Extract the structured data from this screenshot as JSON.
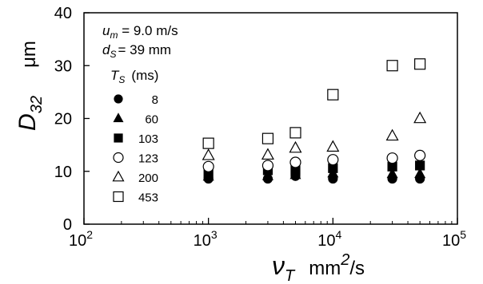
{
  "chart_data": {
    "type": "scatter",
    "x_scale": "log",
    "xlim": [
      100,
      100000
    ],
    "ylim": [
      0,
      40
    ],
    "yticks": [
      0,
      10,
      20,
      30,
      40
    ],
    "xtick_labels": [
      {
        "base": "10",
        "exp": "2"
      },
      {
        "base": "10",
        "exp": "3"
      },
      {
        "base": "10",
        "exp": "4"
      },
      {
        "base": "10",
        "exp": "5"
      }
    ],
    "ytick_labels": [
      "0",
      "10",
      "20",
      "30",
      "40"
    ],
    "ylabel": {
      "main": "D",
      "sub": "32",
      "unit": "μm"
    },
    "xlabel": {
      "main": "ν",
      "sub": "T",
      "unit_pre": "mm",
      "unit_exp": "2",
      "unit_post": "/s"
    },
    "annotations": {
      "um": {
        "var": "u",
        "sub": "m",
        "text": " = 9.0 m/s"
      },
      "ds": {
        "var": "d",
        "sub": "S",
        "text": "= 39 mm"
      },
      "legend_title": {
        "var": "T",
        "sub": "S",
        "text": "(ms)"
      }
    },
    "grid": false,
    "legend_position": "upper-left, inside plot",
    "series": [
      {
        "name": "8",
        "marker": "filled-circle",
        "x": [
          1000,
          3000,
          5000,
          10000,
          30000,
          50000
        ],
        "y": [
          8.6,
          8.6,
          9.1,
          8.6,
          8.6,
          8.6
        ]
      },
      {
        "name": "60",
        "marker": "filled-triangle",
        "x": [
          1000,
          3000,
          5000,
          10000,
          30000,
          50000
        ],
        "y": [
          9.0,
          9.1,
          9.3,
          9.6,
          9.5,
          9.5
        ]
      },
      {
        "name": "103",
        "marker": "filled-square",
        "x": [
          1000,
          3000,
          5000,
          10000,
          30000,
          50000
        ],
        "y": [
          9.5,
          10.2,
          10.2,
          10.6,
          10.9,
          11.1
        ]
      },
      {
        "name": "123",
        "marker": "open-circle",
        "x": [
          1000,
          3000,
          5000,
          10000,
          30000,
          50000
        ],
        "y": [
          10.9,
          11.1,
          11.7,
          12.2,
          12.5,
          13.0
        ]
      },
      {
        "name": "200",
        "marker": "open-triangle",
        "x": [
          1000,
          3000,
          5000,
          10000,
          30000,
          50000
        ],
        "y": [
          13.0,
          13.1,
          14.4,
          14.6,
          16.7,
          20.0
        ]
      },
      {
        "name": "453",
        "marker": "open-square",
        "x": [
          1000,
          3000,
          5000,
          10000,
          30000,
          50000
        ],
        "y": [
          15.3,
          16.2,
          17.3,
          24.5,
          30.0,
          30.3
        ]
      }
    ]
  }
}
